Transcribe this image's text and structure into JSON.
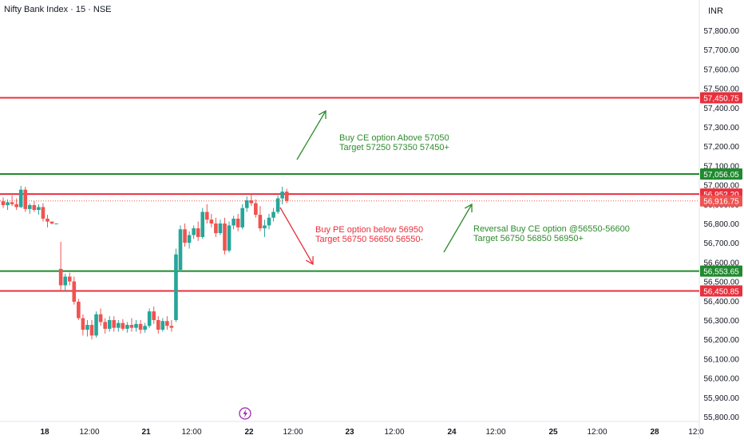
{
  "header": {
    "title": "Nifty Bank Index · 15 · NSE",
    "currency": "INR"
  },
  "chart_data": {
    "type": "candlestick",
    "ylim": [
      55750,
      57900
    ],
    "y_ticks": [
      55800,
      55900,
      56000,
      56100,
      56200,
      56300,
      56400,
      56500,
      56600,
      56700,
      56800,
      56900,
      57000,
      57100,
      57200,
      57300,
      57400,
      57500,
      57600,
      57700,
      57800
    ],
    "x_ticks": [
      "18",
      "12:00",
      "21",
      "12:00",
      "22",
      "12:00",
      "23",
      "12:00",
      "24",
      "12:00",
      "25",
      "12:00",
      "28",
      "12:0"
    ],
    "colors": {
      "up": "#26a69a",
      "down": "#ef5350",
      "red_level": "#e8303d",
      "green_level": "#1f8a2e",
      "annotation_red": "#e8303d",
      "annotation_green": "#2e8b2e",
      "event_icon": "#9c27b0"
    },
    "levels": [
      {
        "value": 57450.75,
        "label": "57,450.75",
        "color": "red"
      },
      {
        "value": 57056.05,
        "label": "57,056.05",
        "color": "green"
      },
      {
        "value": 56952.2,
        "label": "56,952.20",
        "color": "red"
      },
      {
        "value": 56553.65,
        "label": "56,553.65",
        "color": "green"
      },
      {
        "value": 56450.85,
        "label": "56,450.85",
        "color": "red"
      }
    ],
    "last_price": {
      "value": 56916.75,
      "label": "56,916.75"
    },
    "annotations": [
      {
        "lines": [
          "Buy CE option Above 57050",
          "Target 57250 57350 57450+"
        ],
        "color": "green"
      },
      {
        "lines": [
          "Buy PE option below 56950",
          "Target 56750 56650 56550-"
        ],
        "color": "red"
      },
      {
        "lines": [
          "Reversal Buy CE option @56550-56600",
          "Target 56750 56850 56950+"
        ],
        "color": "green"
      }
    ],
    "event_icon": "lightning-icon",
    "candles": [
      [
        56915,
        56935,
        56880,
        56895
      ],
      [
        56895,
        56925,
        56870,
        56910
      ],
      [
        56910,
        56945,
        56890,
        56900
      ],
      [
        56900,
        56930,
        56870,
        56885
      ],
      [
        56885,
        56995,
        56880,
        56975
      ],
      [
        56975,
        56990,
        56860,
        56875
      ],
      [
        56875,
        56905,
        56850,
        56895
      ],
      [
        56895,
        56915,
        56860,
        56870
      ],
      [
        56870,
        56900,
        56845,
        56885
      ],
      [
        56885,
        56905,
        56810,
        56825
      ],
      [
        56825,
        56845,
        56780,
        56810
      ],
      [
        56810,
        56800,
        56795,
        56800
      ],
      [
        56800,
        56795,
        56795,
        56800
      ],
      [
        56565,
        56705,
        56450,
        56480
      ],
      [
        56480,
        56540,
        56450,
        56525
      ],
      [
        56525,
        56545,
        56480,
        56500
      ],
      [
        56500,
        56525,
        56380,
        56395
      ],
      [
        56395,
        56410,
        56300,
        56310
      ],
      [
        56310,
        56330,
        56220,
        56250
      ],
      [
        56250,
        56300,
        56215,
        56275
      ],
      [
        56275,
        56300,
        56200,
        56220
      ],
      [
        56220,
        56345,
        56210,
        56330
      ],
      [
        56330,
        56360,
        56270,
        56290
      ],
      [
        56290,
        56310,
        56230,
        56255
      ],
      [
        56255,
        56320,
        56240,
        56300
      ],
      [
        56300,
        56320,
        56240,
        56260
      ],
      [
        56260,
        56300,
        56240,
        56285
      ],
      [
        56285,
        56305,
        56245,
        56255
      ],
      [
        56255,
        56290,
        56235,
        56275
      ],
      [
        56275,
        56310,
        56240,
        56260
      ],
      [
        56260,
        56300,
        56240,
        56280
      ],
      [
        56280,
        56300,
        56230,
        56250
      ],
      [
        56250,
        56285,
        56235,
        56270
      ],
      [
        56270,
        56360,
        56260,
        56345
      ],
      [
        56345,
        56370,
        56280,
        56300
      ],
      [
        56300,
        56320,
        56230,
        56250
      ],
      [
        56250,
        56310,
        56240,
        56295
      ],
      [
        56295,
        56320,
        56250,
        56270
      ],
      [
        56270,
        56300,
        56240,
        56260
      ],
      [
        56300,
        56670,
        56290,
        56640
      ],
      [
        56560,
        56790,
        56550,
        56770
      ],
      [
        56770,
        56800,
        56680,
        56700
      ],
      [
        56700,
        56760,
        56670,
        56740
      ],
      [
        56740,
        56790,
        56720,
        56775
      ],
      [
        56775,
        56810,
        56710,
        56730
      ],
      [
        56730,
        56880,
        56720,
        56860
      ],
      [
        56860,
        56900,
        56800,
        56820
      ],
      [
        56820,
        56850,
        56780,
        56800
      ],
      [
        56800,
        56830,
        56730,
        56750
      ],
      [
        56750,
        56820,
        56740,
        56800
      ],
      [
        56800,
        56830,
        56640,
        56660
      ],
      [
        56660,
        56810,
        56650,
        56790
      ],
      [
        56790,
        56840,
        56770,
        56825
      ],
      [
        56825,
        56850,
        56760,
        56780
      ],
      [
        56780,
        56900,
        56770,
        56880
      ],
      [
        56880,
        56940,
        56860,
        56920
      ],
      [
        56920,
        56950,
        56890,
        56905
      ],
      [
        56905,
        56925,
        56830,
        56845
      ],
      [
        56845,
        56890,
        56760,
        56775
      ],
      [
        56775,
        56820,
        56730,
        56790
      ],
      [
        56790,
        56850,
        56770,
        56830
      ],
      [
        56830,
        56880,
        56810,
        56860
      ],
      [
        56860,
        56945,
        56850,
        56930
      ],
      [
        56930,
        56990,
        56900,
        56965
      ],
      [
        56965,
        56980,
        56905,
        56917
      ]
    ]
  }
}
